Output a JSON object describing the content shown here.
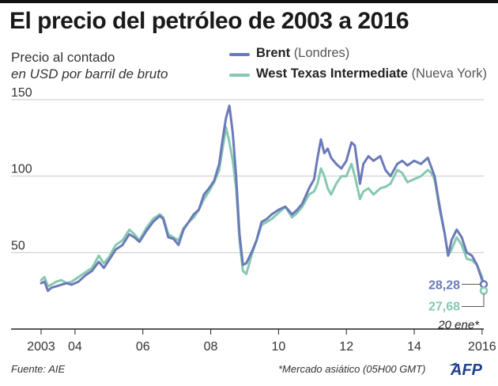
{
  "header": {
    "title": "El precio del petróleo de 2003 a 2016",
    "subtitle_line1": "Precio al contado",
    "subtitle_line2": "en USD por barril de bruto"
  },
  "legend": {
    "brent_name": "Brent",
    "brent_loc": "(Londres)",
    "wti_name": "West Texas Intermediate",
    "wti_loc": "(Nueva York)"
  },
  "footer": {
    "source": "Fuente: AIE",
    "note": "*Mercado asiático (05H00 GMT)",
    "logo_text": "AFP"
  },
  "colors": {
    "brent": "#6b7ab8",
    "wti": "#86c9b0",
    "grid": "#c8c8c8",
    "axis": "#222222"
  },
  "chart_data": {
    "type": "line",
    "title": "El precio del petróleo de 2003 a 2016",
    "ylabel": "USD por barril",
    "xlim": [
      2003,
      2016.05
    ],
    "ylim": [
      0,
      150
    ],
    "yticks": [
      50,
      100,
      150
    ],
    "ytick_labels": [
      "50",
      "100",
      "150"
    ],
    "xticks": [
      2003,
      2004,
      2006,
      2008,
      2010,
      2012,
      2014,
      2016
    ],
    "xtick_labels": [
      "2003",
      "04",
      "06",
      "08",
      "10",
      "12",
      "14",
      "2016"
    ],
    "grid": true,
    "legend_position": "top-right",
    "series": [
      {
        "name": "Brent",
        "x": [
          2003.0,
          2003.1,
          2003.2,
          2003.3,
          2003.45,
          2003.6,
          2003.75,
          2003.9,
          2004.1,
          2004.3,
          2004.5,
          2004.7,
          2004.85,
          2005.0,
          2005.2,
          2005.4,
          2005.6,
          2005.75,
          2005.9,
          2006.1,
          2006.3,
          2006.5,
          2006.6,
          2006.75,
          2006.9,
          2007.05,
          2007.2,
          2007.35,
          2007.5,
          2007.65,
          2007.8,
          2007.95,
          2008.1,
          2008.25,
          2008.35,
          2008.45,
          2008.55,
          2008.65,
          2008.75,
          2008.85,
          2008.95,
          2009.05,
          2009.2,
          2009.35,
          2009.5,
          2009.65,
          2009.8,
          2010.0,
          2010.2,
          2010.4,
          2010.55,
          2010.7,
          2010.9,
          2011.05,
          2011.15,
          2011.25,
          2011.35,
          2011.45,
          2011.55,
          2011.7,
          2011.85,
          2012.0,
          2012.15,
          2012.25,
          2012.4,
          2012.5,
          2012.65,
          2012.8,
          2013.0,
          2013.15,
          2013.3,
          2013.5,
          2013.65,
          2013.8,
          2014.0,
          2014.2,
          2014.4,
          2014.5,
          2014.6,
          2014.75,
          2014.9,
          2015.0,
          2015.1,
          2015.25,
          2015.4,
          2015.55,
          2015.7,
          2015.85,
          2016.0,
          2016.05
        ],
        "values": [
          30,
          31,
          25,
          27,
          28,
          29,
          30,
          29,
          31,
          35,
          38,
          44,
          40,
          45,
          52,
          55,
          62,
          60,
          57,
          64,
          70,
          74,
          72,
          60,
          59,
          55,
          65,
          70,
          75,
          78,
          88,
          92,
          97,
          108,
          124,
          138,
          146,
          128,
          100,
          62,
          42,
          43,
          50,
          58,
          70,
          72,
          75,
          78,
          80,
          75,
          78,
          82,
          92,
          98,
          112,
          124,
          115,
          118,
          112,
          108,
          105,
          110,
          122,
          120,
          95,
          108,
          113,
          110,
          113,
          104,
          100,
          108,
          110,
          107,
          110,
          108,
          112,
          106,
          100,
          80,
          62,
          48,
          58,
          65,
          60,
          50,
          48,
          42,
          32,
          28.28
        ]
      },
      {
        "name": "West Texas Intermediate",
        "x": [
          2003.0,
          2003.1,
          2003.2,
          2003.3,
          2003.45,
          2003.6,
          2003.75,
          2003.9,
          2004.1,
          2004.3,
          2004.5,
          2004.7,
          2004.85,
          2005.0,
          2005.2,
          2005.4,
          2005.6,
          2005.75,
          2005.9,
          2006.1,
          2006.3,
          2006.5,
          2006.6,
          2006.75,
          2006.9,
          2007.05,
          2007.2,
          2007.35,
          2007.5,
          2007.65,
          2007.8,
          2007.95,
          2008.1,
          2008.25,
          2008.35,
          2008.45,
          2008.55,
          2008.65,
          2008.75,
          2008.85,
          2008.95,
          2009.05,
          2009.2,
          2009.35,
          2009.5,
          2009.65,
          2009.8,
          2010.0,
          2010.2,
          2010.4,
          2010.55,
          2010.7,
          2010.9,
          2011.05,
          2011.15,
          2011.25,
          2011.35,
          2011.45,
          2011.55,
          2011.7,
          2011.85,
          2012.0,
          2012.15,
          2012.25,
          2012.4,
          2012.5,
          2012.65,
          2012.8,
          2013.0,
          2013.15,
          2013.3,
          2013.5,
          2013.65,
          2013.8,
          2014.0,
          2014.2,
          2014.4,
          2014.5,
          2014.6,
          2014.75,
          2014.9,
          2015.0,
          2015.1,
          2015.25,
          2015.4,
          2015.55,
          2015.7,
          2015.85,
          2016.0,
          2016.05
        ],
        "values": [
          32,
          34,
          28,
          29,
          31,
          32,
          30,
          31,
          34,
          37,
          40,
          48,
          43,
          47,
          55,
          58,
          65,
          62,
          58,
          66,
          72,
          75,
          73,
          62,
          60,
          58,
          66,
          70,
          73,
          78,
          85,
          90,
          96,
          104,
          118,
          132,
          122,
          110,
          92,
          58,
          38,
          36,
          48,
          58,
          68,
          70,
          72,
          76,
          80,
          73,
          76,
          80,
          88,
          90,
          95,
          105,
          100,
          92,
          88,
          95,
          100,
          100,
          108,
          100,
          85,
          90,
          92,
          88,
          92,
          93,
          95,
          104,
          102,
          96,
          98,
          100,
          104,
          102,
          98,
          78,
          62,
          48,
          52,
          60,
          55,
          46,
          45,
          42,
          34,
          27.68
        ]
      }
    ],
    "annotations": {
      "brent_last": "28,28",
      "wti_last": "27,68",
      "last_date": "20 ene*"
    }
  }
}
